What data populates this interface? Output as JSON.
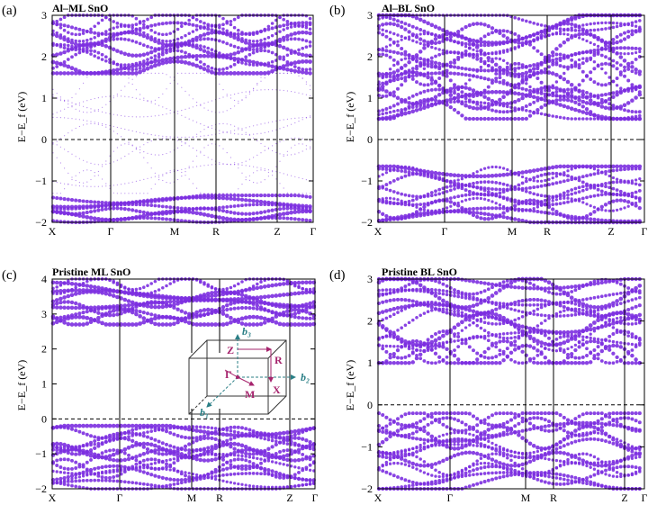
{
  "colors": {
    "band": "#7c2fe0",
    "fermi": "#000000",
    "inset_reciprocal": "#2a7f86",
    "inset_kpath": "#a6246d"
  },
  "ylabel": "E−E_f (eV)",
  "chart_data": [
    {
      "type": "scatter",
      "panel": "(a)",
      "title": "Al–ML SnO",
      "xlabel": "",
      "ylabel": "E−E_f (eV)",
      "k_labels": [
        "X",
        "Γ",
        "M",
        "R",
        "Z",
        "Γ"
      ],
      "ylim": [
        -2,
        3
      ],
      "yticks": [
        -2,
        -1,
        0,
        1,
        2,
        3
      ],
      "fermi_level": 0,
      "grid": false,
      "series": [
        {
          "name": "dense conduction bands",
          "e_range": [
            1.6,
            3.0
          ],
          "k_segment": "X-Γ-M-R-Z-Γ"
        },
        {
          "name": "weak in-gap states",
          "e_range": [
            -1.3,
            1.6
          ],
          "k_segment": "X-Γ-M-R-Z-Γ"
        },
        {
          "name": "dense valence bands",
          "e_range": [
            -2.0,
            -1.35
          ],
          "k_segment": "X-Γ-M-R-Z-Γ"
        }
      ]
    },
    {
      "type": "scatter",
      "panel": "(b)",
      "title": "Al–BL SnO",
      "xlabel": "",
      "ylabel": "E−E_f (eV)",
      "k_labels": [
        "X",
        "Γ",
        "M",
        "R",
        "Z",
        "Γ"
      ],
      "ylim": [
        -2,
        3
      ],
      "yticks": [
        -2,
        -1,
        0,
        1,
        2,
        3
      ],
      "fermi_level": 0,
      "grid": false,
      "series": [
        {
          "name": "conduction bands",
          "e_range": [
            0.5,
            3.0
          ],
          "k_segment": "X-Γ-M-R-Z-Γ"
        },
        {
          "name": "valence bands",
          "e_range": [
            -2.0,
            -0.65
          ],
          "k_segment": "X-Γ-M-R-Z-Γ"
        }
      ]
    },
    {
      "type": "scatter",
      "panel": "(c)",
      "title": "Pristine ML SnO",
      "xlabel": "",
      "ylabel": "E−E_f (eV)",
      "k_labels": [
        "X",
        "Γ",
        "M",
        "R",
        "Z",
        "Γ"
      ],
      "ylim": [
        -2,
        4
      ],
      "yticks": [
        -2,
        -1,
        0,
        1,
        2,
        3,
        4
      ],
      "fermi_level": 0,
      "grid": false,
      "series": [
        {
          "name": "conduction bands",
          "e_range": [
            2.7,
            4.0
          ],
          "k_segment": "X-Γ-M-R-Z-Γ"
        },
        {
          "name": "valence bands",
          "e_range": [
            -2.0,
            -0.2
          ],
          "k_segment": "X-Γ-M-R-Z-Γ"
        }
      ],
      "inset": {
        "reciprocal_axes": [
          "b₁",
          "b₂",
          "b₃"
        ],
        "k_points": [
          "Z",
          "R",
          "Γ",
          "M",
          "X"
        ]
      }
    },
    {
      "type": "scatter",
      "panel": "(d)",
      "title": "Pristine BL SnO",
      "xlabel": "",
      "ylabel": "E−E_f (eV)",
      "k_labels": [
        "X",
        "Γ",
        "M",
        "R",
        "Z",
        "Γ"
      ],
      "ylim": [
        -2,
        3
      ],
      "yticks": [
        -2,
        -1,
        0,
        1,
        2,
        3
      ],
      "fermi_level": 0,
      "grid": false,
      "series": [
        {
          "name": "conduction bands",
          "e_range": [
            1.0,
            3.0
          ],
          "k_segment": "X-Γ-M-R-Z-Γ"
        },
        {
          "name": "valence bands",
          "e_range": [
            -2.0,
            -0.2
          ],
          "k_segment": "X-Γ-M-R-Z-Γ"
        }
      ]
    }
  ]
}
